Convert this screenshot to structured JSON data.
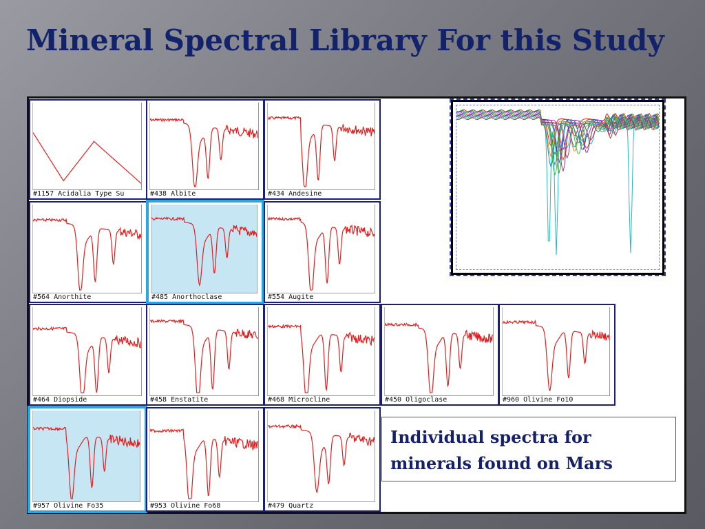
{
  "slide": {
    "title": "Mineral Spectral Library For this Study",
    "caption_line1": "Individual spectra for",
    "caption_line2": "minerals found on Mars"
  },
  "colors": {
    "title": "#12236b",
    "spectrum": "#e02020",
    "tile_border": "#1c1c7a",
    "highlight_border": "#2aa7e0",
    "highlight_fill": "#c7e6f3"
  },
  "tiles": [
    {
      "label": "#1157 Acidalia Type Su",
      "highlight": false
    },
    {
      "label": "#438 Albite",
      "highlight": false
    },
    {
      "label": "#434 Andesine",
      "highlight": false
    },
    {
      "label": "#564 Anorthite",
      "highlight": false
    },
    {
      "label": "#485 Anorthoclase",
      "highlight": true
    },
    {
      "label": "#554 Augite",
      "highlight": false
    },
    {
      "label": "#464 Diopside",
      "highlight": false
    },
    {
      "label": "#458 Enstatite",
      "highlight": false
    },
    {
      "label": "#468 Microcline",
      "highlight": false
    },
    {
      "label": "#450 Oligoclase",
      "highlight": false
    },
    {
      "label": "#960 Olivine Fo10",
      "highlight": false
    },
    {
      "label": "#957 Olivine Fo35",
      "highlight": true
    },
    {
      "label": "#953 Olivine Fo68",
      "highlight": false
    },
    {
      "label": "#479 Quartz",
      "highlight": false
    }
  ]
}
